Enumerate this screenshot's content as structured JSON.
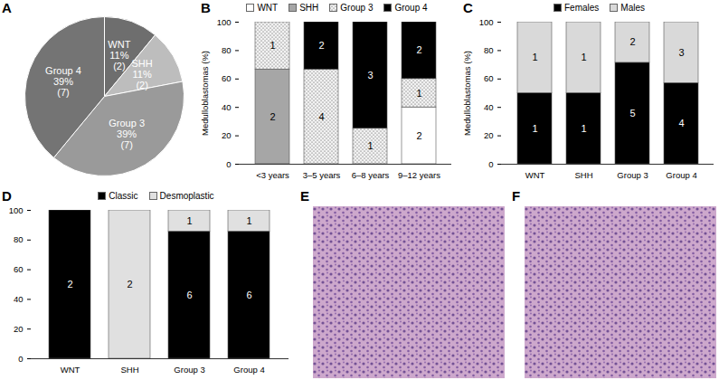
{
  "chart_data": [
    {
      "type": "pie",
      "title": "A",
      "categories": [
        "WNT",
        "SHH",
        "Group 3",
        "Group 4"
      ],
      "values": [
        11,
        11,
        39,
        39
      ],
      "value_labels": [
        "11%",
        "11%",
        "39%",
        "39%"
      ],
      "counts": [
        2,
        2,
        7,
        7
      ],
      "count_labels": [
        "(2)",
        "(2)",
        "(7)",
        "(7)"
      ],
      "colors": [
        "#6e6e6e",
        "#bdbdbd",
        "#9a9a9a",
        "#747474"
      ],
      "data_labels": true
    },
    {
      "type": "bar",
      "title": "B",
      "stacked": true,
      "legend": "top",
      "y_label": "Medulloblastomas (%)",
      "categories": [
        "<3 years",
        "3–5 years",
        "6–8 years",
        "9–12 years"
      ],
      "series": [
        {
          "name": "WNT",
          "color": "#ffffff",
          "values": [
            0,
            0,
            0,
            40
          ],
          "counts": [
            null,
            null,
            null,
            2
          ]
        },
        {
          "name": "SHH",
          "color": "#a6a6a6",
          "values": [
            66.7,
            0,
            0,
            0
          ],
          "counts": [
            2,
            null,
            null,
            null
          ]
        },
        {
          "name": "Group 3",
          "color": "#f2f2f2",
          "marker": "dots",
          "values": [
            33.3,
            66.7,
            25,
            20
          ],
          "counts": [
            1,
            4,
            1,
            1
          ]
        },
        {
          "name": "Group 4",
          "color": "#000000",
          "values": [
            0,
            33.3,
            75,
            40
          ],
          "counts": [
            null,
            2,
            3,
            2
          ]
        }
      ],
      "ylim": [
        0,
        100
      ],
      "yticks": [
        0,
        20,
        40,
        60,
        80,
        100
      ]
    },
    {
      "type": "bar",
      "title": "C",
      "stacked": true,
      "legend": "top",
      "y_label": "Medulloblastomas (%)",
      "categories": [
        "WNT",
        "SHH",
        "Group 3",
        "Group 4"
      ],
      "series": [
        {
          "name": "Females",
          "color": "#000000",
          "values": [
            50,
            50,
            71.4,
            57.1
          ],
          "counts": [
            1,
            1,
            5,
            4
          ]
        },
        {
          "name": "Males",
          "color": "#d9d9d9",
          "values": [
            50,
            50,
            28.6,
            42.9
          ],
          "counts": [
            1,
            1,
            2,
            3
          ]
        }
      ],
      "ylim": [
        0,
        100
      ],
      "yticks": [
        0,
        20,
        40,
        60,
        80,
        100
      ]
    },
    {
      "type": "bar",
      "title": "D",
      "stacked": true,
      "legend": "top",
      "categories": [
        "WNT",
        "SHH",
        "Group 3",
        "Group 4"
      ],
      "series": [
        {
          "name": "Classic",
          "color": "#000000",
          "values": [
            100,
            0,
            85.7,
            85.7
          ],
          "counts": [
            2,
            null,
            6,
            6
          ]
        },
        {
          "name": "Desmoplastic",
          "color": "#e0e0e0",
          "values": [
            0,
            100,
            14.3,
            14.3
          ],
          "counts": [
            null,
            2,
            1,
            1
          ]
        }
      ],
      "ylim": [
        0,
        100
      ],
      "yticks": [
        0,
        20,
        40,
        60,
        80,
        100
      ]
    },
    {
      "type": "image",
      "title": "E"
    },
    {
      "type": "image",
      "title": "F"
    }
  ]
}
